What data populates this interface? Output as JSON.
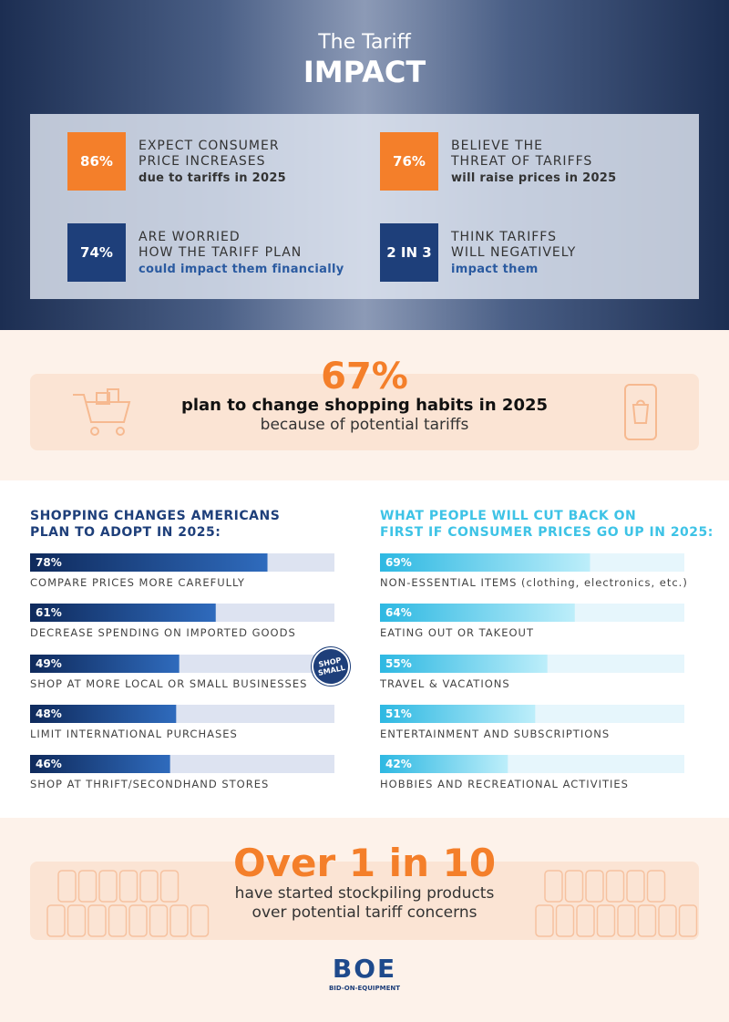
{
  "header": {
    "title": "The Tariff",
    "title_strong": "IMPACT"
  },
  "stats": [
    {
      "value": "86%",
      "lines": [
        "EXPECT CONSUMER",
        "PRICE INCREASES"
      ],
      "detail": "due to tariffs in 2025"
    },
    {
      "value": "76%",
      "lines": [
        "BELIEVE THE",
        "THREAT OF TARIFFS"
      ],
      "detail": "will raise prices in 2025"
    },
    {
      "value": "74%",
      "lines": [
        "ARE WORRIED",
        "HOW THE TARIFF PLAN"
      ],
      "detail": "could impact them financially"
    },
    {
      "value": "2 IN 3",
      "lines": [
        "THINK TARIFFS",
        "WILL NEGATIVELY"
      ],
      "detail": "impact them"
    }
  ],
  "highlight": {
    "value": "67%",
    "line1": "plan to change shopping habits in 2025",
    "line2": "because of potential tariffs"
  },
  "shopping_changes": {
    "title": [
      "SHOPPING CHANGES AMERICANS",
      "PLAN TO ADOPT IN 2025:"
    ],
    "badge": "SHOP SMALL",
    "items": [
      {
        "value": 78,
        "value_label": "78%",
        "label": "COMPARE PRICES MORE CAREFULLY"
      },
      {
        "value": 61,
        "value_label": "61%",
        "label": "DECREASE SPENDING ON IMPORTED GOODS"
      },
      {
        "value": 49,
        "value_label": "49%",
        "label": "SHOP AT MORE LOCAL OR SMALL BUSINESSES"
      },
      {
        "value": 48,
        "value_label": "48%",
        "label": "LIMIT INTERNATIONAL PURCHASES"
      },
      {
        "value": 46,
        "value_label": "46%",
        "label": "SHOP AT THRIFT/SECONDHAND STORES"
      }
    ]
  },
  "cut_back": {
    "title": [
      "WHAT PEOPLE WILL CUT BACK ON",
      "FIRST IF CONSUMER PRICES GO UP IN 2025:"
    ],
    "items": [
      {
        "value": 69,
        "value_label": "69%",
        "label": "NON-ESSENTIAL ITEMS (clothing, electronics, etc.)"
      },
      {
        "value": 64,
        "value_label": "64%",
        "label": "EATING OUT OR TAKEOUT"
      },
      {
        "value": 55,
        "value_label": "55%",
        "label": "TRAVEL & VACATIONS"
      },
      {
        "value": 51,
        "value_label": "51%",
        "label": "ENTERTAINMENT AND SUBSCRIPTIONS"
      },
      {
        "value": 42,
        "value_label": "42%",
        "label": "HOBBIES AND RECREATIONAL ACTIVITIES"
      }
    ]
  },
  "stockpile": {
    "headline": "Over 1 in 10",
    "line1": "have started stockpiling products",
    "line2": "over potential tariff concerns"
  },
  "footer": {
    "logo": "BOE",
    "tagline": "BID-ON-EQUIPMENT"
  }
}
